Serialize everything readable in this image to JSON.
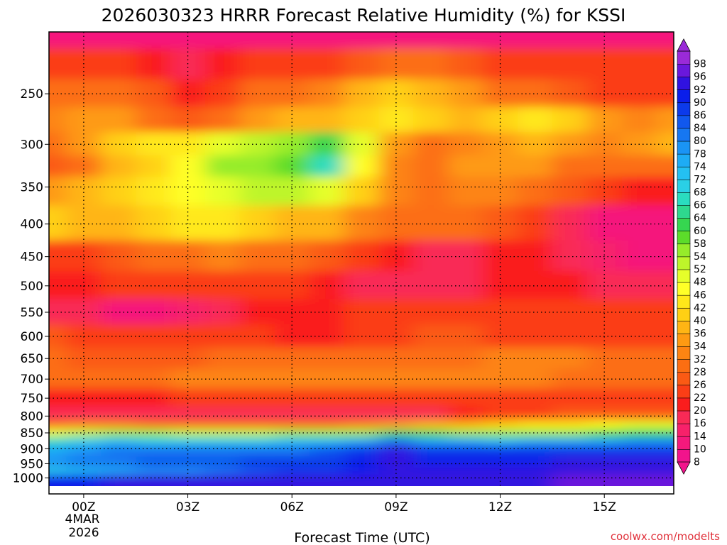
{
  "chart_data": {
    "type": "heatmap",
    "title": "2026030323 HRRR Forecast Relative Humidity (%) for KSSI",
    "xlabel": "Forecast Time (UTC)",
    "ylabel": "",
    "x_ticks": [
      "00Z",
      "03Z",
      "06Z",
      "09Z",
      "12Z",
      "15Z"
    ],
    "x_tick_hours": [
      1,
      4,
      7,
      10,
      13,
      16
    ],
    "x_range_hours": [
      0,
      18
    ],
    "date_label": [
      "4MAR",
      "2026"
    ],
    "y_ticks": [
      250,
      300,
      350,
      400,
      450,
      500,
      550,
      600,
      650,
      700,
      750,
      800,
      850,
      900,
      950,
      1000
    ],
    "y_range": [
      200,
      1030
    ],
    "y_scale": "log",
    "grid": true,
    "colorbar": {
      "levels": [
        8,
        10,
        14,
        16,
        20,
        22,
        26,
        28,
        32,
        34,
        36,
        40,
        42,
        46,
        48,
        52,
        54,
        58,
        60,
        64,
        66,
        68,
        72,
        74,
        78,
        80,
        84,
        86,
        90,
        92,
        96,
        98
      ],
      "colors": [
        "#f2148c",
        "#f5197c",
        "#f7216a",
        "#f92a56",
        "#fa1d1d",
        "#fb3e16",
        "#fb5a14",
        "#fc6e12",
        "#fd8412",
        "#fe9a12",
        "#ffb514",
        "#ffd014",
        "#ffe81a",
        "#ffff28",
        "#e6ff2a",
        "#bef52a",
        "#96ec2a",
        "#5cdc2a",
        "#36d650",
        "#2ed88e",
        "#2adcc0",
        "#2ad0e6",
        "#24c0f2",
        "#1eacf5",
        "#1a94f5",
        "#1677f2",
        "#1158ee",
        "#0c3aea",
        "#0a1eea",
        "#3012e0",
        "#6a18dc",
        "#9a2ad8"
      ],
      "extend": "both"
    },
    "rows": [
      {
        "p": 200,
        "rh": [
          10,
          10,
          10,
          10,
          10,
          10,
          10,
          10,
          10,
          10,
          10,
          10,
          12,
          12,
          12,
          12,
          12,
          12,
          12
        ]
      },
      {
        "p": 225,
        "rh": [
          22,
          22,
          22,
          20,
          18,
          20,
          22,
          22,
          24,
          26,
          30,
          28,
          26,
          24,
          22,
          22,
          24,
          24,
          22
        ]
      },
      {
        "p": 250,
        "rh": [
          30,
          30,
          30,
          26,
          20,
          24,
          28,
          30,
          32,
          36,
          40,
          38,
          34,
          30,
          28,
          26,
          24,
          22,
          24
        ]
      },
      {
        "p": 275,
        "rh": [
          32,
          34,
          34,
          30,
          26,
          30,
          34,
          36,
          36,
          40,
          44,
          40,
          36,
          40,
          44,
          40,
          34,
          32,
          34
        ]
      },
      {
        "p": 300,
        "rh": [
          30,
          34,
          40,
          42,
          44,
          48,
          52,
          56,
          60,
          48,
          34,
          28,
          32,
          34,
          36,
          34,
          32,
          34,
          36
        ]
      },
      {
        "p": 325,
        "rh": [
          26,
          30,
          36,
          40,
          46,
          54,
          56,
          58,
          66,
          46,
          32,
          30,
          34,
          34,
          34,
          30,
          28,
          28,
          28
        ]
      },
      {
        "p": 350,
        "rh": [
          34,
          36,
          40,
          44,
          46,
          50,
          52,
          52,
          50,
          40,
          32,
          30,
          32,
          32,
          30,
          26,
          22,
          20,
          20
        ]
      },
      {
        "p": 400,
        "rh": [
          40,
          36,
          36,
          40,
          42,
          42,
          40,
          38,
          36,
          32,
          28,
          28,
          28,
          26,
          24,
          16,
          12,
          10,
          10
        ]
      },
      {
        "p": 450,
        "rh": [
          22,
          24,
          26,
          28,
          30,
          32,
          30,
          28,
          26,
          22,
          20,
          18,
          18,
          20,
          20,
          18,
          14,
          12,
          12
        ]
      },
      {
        "p": 500,
        "rh": [
          20,
          20,
          22,
          22,
          22,
          24,
          24,
          22,
          20,
          18,
          16,
          16,
          18,
          20,
          20,
          20,
          18,
          16,
          16
        ]
      },
      {
        "p": 550,
        "rh": [
          18,
          16,
          12,
          12,
          14,
          18,
          20,
          20,
          20,
          22,
          22,
          22,
          22,
          22,
          22,
          22,
          22,
          22,
          22
        ]
      },
      {
        "p": 600,
        "rh": [
          26,
          24,
          22,
          22,
          22,
          22,
          22,
          20,
          20,
          22,
          24,
          26,
          26,
          24,
          24,
          24,
          24,
          24,
          24
        ]
      },
      {
        "p": 650,
        "rh": [
          28,
          26,
          26,
          26,
          26,
          28,
          28,
          28,
          28,
          28,
          28,
          28,
          30,
          32,
          32,
          32,
          30,
          30,
          30
        ]
      },
      {
        "p": 700,
        "rh": [
          30,
          30,
          30,
          30,
          32,
          32,
          32,
          32,
          32,
          32,
          32,
          32,
          32,
          32,
          32,
          30,
          28,
          28,
          28
        ]
      },
      {
        "p": 750,
        "rh": [
          20,
          20,
          20,
          20,
          22,
          22,
          22,
          22,
          22,
          22,
          24,
          24,
          24,
          24,
          24,
          24,
          22,
          22,
          22
        ]
      },
      {
        "p": 800,
        "rh": [
          18,
          18,
          18,
          18,
          18,
          18,
          18,
          18,
          18,
          18,
          18,
          18,
          20,
          22,
          24,
          26,
          26,
          26,
          26
        ]
      },
      {
        "p": 825,
        "rh": [
          28,
          32,
          32,
          30,
          30,
          30,
          30,
          30,
          30,
          32,
          34,
          36,
          38,
          40,
          42,
          44,
          46,
          48,
          48
        ]
      },
      {
        "p": 850,
        "rh": [
          48,
          52,
          56,
          54,
          52,
          52,
          52,
          54,
          54,
          56,
          60,
          58,
          56,
          54,
          54,
          56,
          58,
          60,
          60
        ]
      },
      {
        "p": 875,
        "rh": [
          66,
          70,
          72,
          70,
          70,
          70,
          70,
          72,
          72,
          74,
          80,
          76,
          74,
          72,
          74,
          74,
          76,
          78,
          78
        ]
      },
      {
        "p": 900,
        "rh": [
          74,
          78,
          80,
          80,
          80,
          80,
          82,
          82,
          84,
          86,
          92,
          88,
          86,
          86,
          86,
          86,
          86,
          88,
          88
        ]
      },
      {
        "p": 950,
        "rh": [
          78,
          80,
          82,
          84,
          84,
          84,
          86,
          86,
          88,
          90,
          92,
          90,
          90,
          90,
          90,
          92,
          92,
          92,
          92
        ]
      },
      {
        "p": 975,
        "rh": [
          70,
          72,
          76,
          78,
          78,
          80,
          84,
          86,
          88,
          90,
          92,
          92,
          92,
          92,
          92,
          94,
          94,
          94,
          94
        ]
      },
      {
        "p": 1000,
        "rh": [
          90,
          90,
          92,
          92,
          92,
          92,
          92,
          92,
          94,
          94,
          94,
          94,
          94,
          94,
          94,
          96,
          96,
          96,
          96
        ]
      }
    ]
  },
  "credit": "coolwx.com/modelts"
}
